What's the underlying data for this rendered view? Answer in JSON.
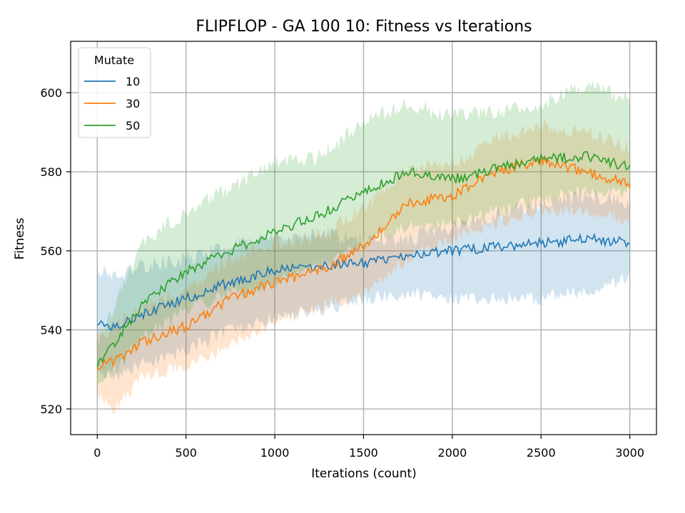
{
  "chart_data": {
    "type": "line",
    "title": "FLIPFLOP - GA 100 10: Fitness vs Iterations",
    "xlabel": "Iterations (count)",
    "ylabel": "Fitness",
    "xlim": [
      -150,
      3150
    ],
    "ylim": [
      513.5,
      613
    ],
    "xticks": [
      0,
      500,
      1000,
      1500,
      2000,
      2500,
      3000
    ],
    "yticks": [
      520,
      540,
      560,
      580,
      600
    ],
    "xtick_labels": [
      "0",
      "500",
      "1000",
      "1500",
      "2000",
      "2500",
      "3000"
    ],
    "ytick_labels": [
      "520",
      "540",
      "560",
      "580",
      "600"
    ],
    "grid": true,
    "legend": {
      "title": "Mutate",
      "placement": "top-left"
    },
    "series": [
      {
        "name": "10",
        "color": "#1f77b4",
        "x": [
          0,
          100,
          250,
          500,
          750,
          1000,
          1250,
          1500,
          1750,
          2000,
          2250,
          2500,
          2750,
          3000
        ],
        "y": [
          542,
          541,
          544,
          548,
          552,
          555,
          556,
          557,
          559,
          560,
          561,
          562,
          563,
          562
        ],
        "lower": [
          530,
          528,
          531,
          535,
          540,
          543,
          545,
          548,
          549,
          548,
          548,
          548,
          550,
          553
        ],
        "upper": [
          555,
          554,
          556,
          558,
          561,
          563,
          564,
          563,
          563,
          566,
          569,
          572,
          574,
          572
        ]
      },
      {
        "name": "30",
        "color": "#ff7f0e",
        "x": [
          0,
          100,
          250,
          500,
          750,
          1000,
          1250,
          1500,
          1750,
          2000,
          2250,
          2500,
          2750,
          3000
        ],
        "y": [
          531,
          532,
          537,
          541,
          548,
          552,
          555,
          561,
          572,
          574,
          580,
          583,
          580,
          577
        ],
        "lower": [
          524,
          520,
          528,
          531,
          536,
          542,
          546,
          549,
          558,
          563,
          567,
          570,
          570,
          568
        ],
        "upper": [
          538,
          541,
          545,
          550,
          558,
          562,
          564,
          571,
          581,
          582,
          588,
          592,
          590,
          586
        ]
      },
      {
        "name": "50",
        "color": "#2ca02c",
        "x": [
          0,
          100,
          250,
          500,
          750,
          1000,
          1250,
          1500,
          1750,
          2000,
          2250,
          2500,
          2750,
          3000
        ],
        "y": [
          531,
          537,
          546,
          555,
          560,
          565,
          569,
          575,
          580,
          578,
          581,
          583,
          584,
          581
        ],
        "lower": [
          527,
          530,
          538,
          545,
          549,
          552,
          556,
          562,
          566,
          567,
          570,
          573,
          575,
          575
        ],
        "upper": [
          536,
          546,
          562,
          570,
          576,
          582,
          584,
          593,
          597,
          594,
          595,
          597,
          602,
          598
        ]
      }
    ]
  }
}
